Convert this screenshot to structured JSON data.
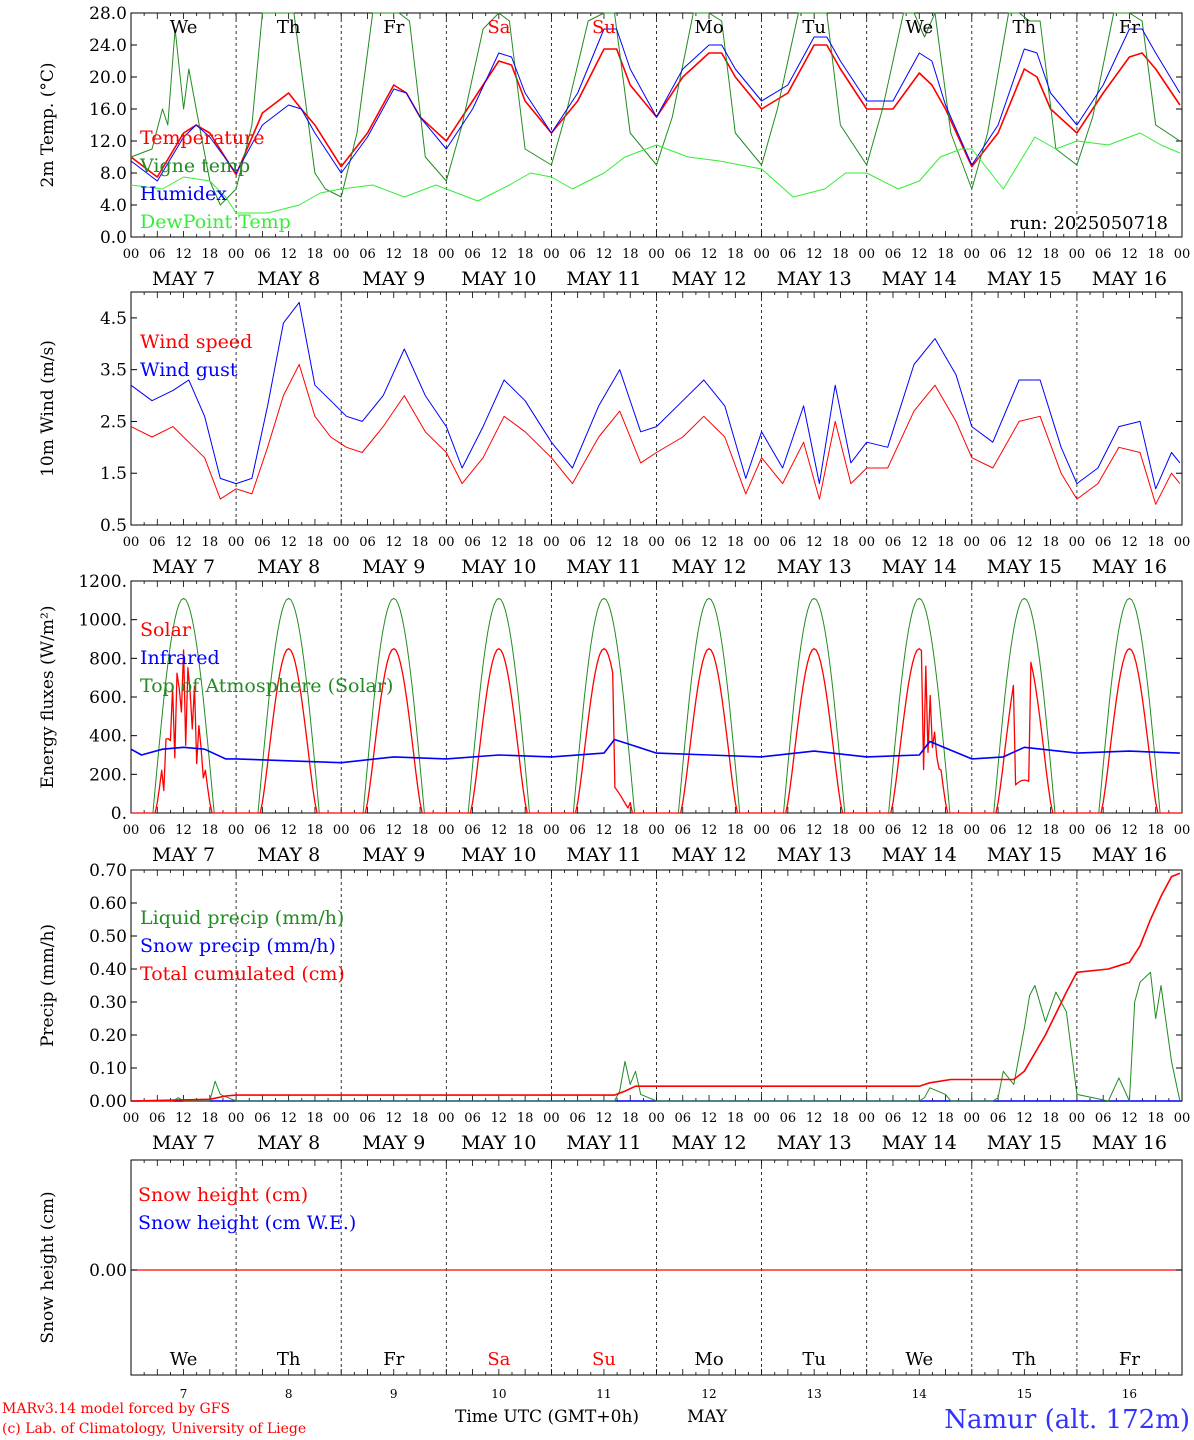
{
  "days": [
    "MAY  7",
    "MAY  8",
    "MAY  9",
    "MAY 10",
    "MAY 11",
    "MAY 12",
    "MAY 13",
    "MAY 14",
    "MAY 15",
    "MAY 16"
  ],
  "hour_ticks": [
    "00",
    "06",
    "12",
    "18"
  ],
  "hour_end": "00",
  "weekdays": [
    {
      "label": "We",
      "color": "#000000"
    },
    {
      "label": "Th",
      "color": "#000000"
    },
    {
      "label": "Fr",
      "color": "#000000"
    },
    {
      "label": "Sa",
      "color": "#ff0000"
    },
    {
      "label": "Su",
      "color": "#ff0000"
    },
    {
      "label": "Mo",
      "color": "#000000"
    },
    {
      "label": "Tu",
      "color": "#000000"
    },
    {
      "label": "We",
      "color": "#000000"
    },
    {
      "label": "Th",
      "color": "#000000"
    },
    {
      "label": "Fr",
      "color": "#000000"
    }
  ],
  "day_numbers": [
    "7",
    "8",
    "9",
    "10",
    "11",
    "12",
    "13",
    "14",
    "15",
    "16"
  ],
  "run_label": "run: 2025050718",
  "footer": {
    "model": "MARv3.14 model forced by GFS",
    "lab": "(c) Lab. of Climatology, University of Liege",
    "xlabel": "Time UTC (GMT+0h)",
    "month": "MAY",
    "station": "Namur (alt. 172m)"
  },
  "chart_data": [
    {
      "type": "line",
      "ylabel": "2m Temp. (°C)",
      "ylim": [
        0,
        28
      ],
      "yticks": [
        "0.0",
        "4.0",
        "8.0",
        "12.0",
        "16.0",
        "20.0",
        "24.0",
        "28.0"
      ],
      "x_unit": "days since 2025-05-07 00 UTC",
      "series": [
        {
          "name": "Temperature",
          "color": "#ff0000",
          "x": [
            0,
            0.25,
            0.5,
            0.62,
            0.75,
            1,
            1.25,
            1.5,
            1.62,
            1.75,
            2,
            2.25,
            2.5,
            2.62,
            2.75,
            3,
            3.25,
            3.5,
            3.62,
            3.75,
            4,
            4.25,
            4.5,
            4.62,
            4.75,
            5,
            5.25,
            5.5,
            5.62,
            5.75,
            6,
            6.25,
            6.5,
            6.62,
            6.75,
            7,
            7.25,
            7.5,
            7.62,
            7.75,
            8,
            8.25,
            8.5,
            8.62,
            8.75,
            9,
            9.25,
            9.5,
            9.62,
            9.75,
            9.98
          ],
          "values": [
            10,
            7.5,
            13,
            14,
            13,
            7.8,
            15.5,
            18,
            16,
            14,
            8.8,
            13,
            19,
            18,
            15,
            12,
            17,
            22,
            21.5,
            17,
            13,
            17,
            23.5,
            23.5,
            19,
            15,
            20,
            23,
            23,
            20,
            16,
            18,
            24,
            24,
            21,
            16,
            16,
            20.5,
            19,
            16,
            8.8,
            13,
            21,
            20,
            16,
            13,
            18,
            22.5,
            23,
            21,
            16.5
          ]
        },
        {
          "name": "Vigne temp",
          "color": "#228b22",
          "x": [
            0,
            0.2,
            0.3,
            0.35,
            0.42,
            0.5,
            0.55,
            0.62,
            0.75,
            0.85,
            1,
            1.15,
            1.25,
            1.35,
            1.45,
            1.55,
            1.75,
            1.85,
            2,
            2.15,
            2.3,
            2.45,
            2.55,
            2.65,
            2.8,
            3,
            3.15,
            3.35,
            3.5,
            3.6,
            3.75,
            4,
            4.15,
            4.35,
            4.5,
            4.6,
            4.75,
            5,
            5.15,
            5.35,
            5.5,
            5.62,
            5.75,
            6,
            6.15,
            6.35,
            6.5,
            6.62,
            6.75,
            7,
            7.15,
            7.35,
            7.45,
            7.55,
            7.65,
            7.8,
            8,
            8.15,
            8.35,
            8.45,
            8.55,
            8.65,
            8.8,
            9,
            9.15,
            9.35,
            9.5,
            9.62,
            9.75,
            9.98
          ],
          "values": [
            10,
            11,
            16,
            14,
            26,
            16,
            21,
            16,
            7,
            4,
            6,
            14,
            28,
            28,
            28,
            28,
            8,
            6,
            5,
            13,
            28,
            28,
            28,
            27,
            10,
            7,
            14,
            26,
            28,
            27,
            11,
            9,
            16,
            27,
            28,
            28,
            13,
            9,
            15,
            28,
            28,
            27,
            13,
            9,
            16,
            28,
            28,
            28,
            14,
            9,
            16,
            28,
            28,
            25,
            28,
            13,
            6,
            13,
            28,
            28,
            27,
            27,
            11,
            9,
            15,
            28,
            28,
            27,
            14,
            12
          ]
        },
        {
          "name": "Humidex",
          "color": "#0000ff",
          "x": [
            0,
            0.25,
            0.5,
            0.62,
            0.75,
            1,
            1.25,
            1.5,
            1.62,
            1.75,
            2,
            2.25,
            2.5,
            2.62,
            2.75,
            3,
            3.25,
            3.5,
            3.62,
            3.75,
            4,
            4.25,
            4.5,
            4.62,
            4.75,
            5,
            5.25,
            5.5,
            5.62,
            5.75,
            6,
            6.25,
            6.5,
            6.62,
            6.75,
            7,
            7.25,
            7.5,
            7.62,
            7.75,
            8,
            8.25,
            8.5,
            8.62,
            8.75,
            9,
            9.25,
            9.5,
            9.62,
            9.75,
            9.98
          ],
          "values": [
            9.5,
            7,
            12.5,
            14,
            12.5,
            8,
            14,
            16.5,
            16,
            13,
            8,
            12.5,
            18.5,
            18,
            15,
            11,
            16,
            23,
            22.5,
            18,
            13,
            18,
            26,
            26,
            21,
            15,
            21,
            24,
            24,
            21,
            17,
            19,
            25,
            25,
            22,
            17,
            17,
            23,
            22,
            16.5,
            9,
            14,
            23.5,
            23,
            18,
            14,
            19,
            26,
            26,
            23,
            18
          ]
        },
        {
          "name": "DewPoint Temp",
          "color": "#33ee33",
          "x": [
            0,
            0.3,
            0.5,
            0.75,
            0.9,
            1,
            1.3,
            1.6,
            1.8,
            2,
            2.3,
            2.6,
            2.9,
            3,
            3.3,
            3.6,
            3.8,
            4,
            4.2,
            4.5,
            4.7,
            5,
            5.3,
            5.6,
            5.8,
            6,
            6.3,
            6.6,
            6.8,
            7,
            7.3,
            7.5,
            7.7,
            7.9,
            8,
            8.3,
            8.6,
            8.8,
            9,
            9.3,
            9.6,
            9.8,
            9.98
          ],
          "values": [
            6.5,
            6,
            7.5,
            7,
            5,
            3,
            3,
            4,
            5.5,
            6,
            6.5,
            5,
            6.5,
            6,
            4.5,
            6.5,
            8,
            7.5,
            6,
            8,
            10,
            11.5,
            10,
            9.5,
            9,
            8.5,
            5,
            6,
            8,
            8,
            6,
            7,
            10,
            11,
            11,
            6,
            12.5,
            11,
            12,
            11.5,
            13,
            11.5,
            10.5
          ]
        }
      ]
    },
    {
      "type": "line",
      "ylabel": "10m Wind (m/s)",
      "ylim": [
        0.5,
        5.0
      ],
      "yticks": [
        "0.5",
        "1.5",
        "2.5",
        "3.5",
        "4.5"
      ],
      "series": [
        {
          "name": "Wind speed",
          "color": "#ff0000",
          "x": [
            0,
            0.2,
            0.4,
            0.55,
            0.7,
            0.85,
            1,
            1.15,
            1.3,
            1.45,
            1.6,
            1.75,
            1.9,
            2.05,
            2.2,
            2.4,
            2.6,
            2.8,
            3,
            3.15,
            3.35,
            3.55,
            3.75,
            4,
            4.2,
            4.45,
            4.65,
            4.85,
            5,
            5.25,
            5.45,
            5.65,
            5.85,
            6,
            6.2,
            6.4,
            6.55,
            6.7,
            6.85,
            7,
            7.2,
            7.45,
            7.65,
            7.85,
            8,
            8.2,
            8.45,
            8.65,
            8.85,
            9,
            9.2,
            9.4,
            9.6,
            9.75,
            9.9,
            9.98
          ],
          "values": [
            2.4,
            2.2,
            2.4,
            2.1,
            1.8,
            1.0,
            1.2,
            1.1,
            2.0,
            3.0,
            3.6,
            2.6,
            2.2,
            2.0,
            1.9,
            2.4,
            3.0,
            2.3,
            1.9,
            1.3,
            1.8,
            2.6,
            2.3,
            1.8,
            1.3,
            2.2,
            2.7,
            1.7,
            1.9,
            2.2,
            2.6,
            2.2,
            1.1,
            1.8,
            1.3,
            2.1,
            1.0,
            2.5,
            1.3,
            1.6,
            1.6,
            2.7,
            3.2,
            2.5,
            1.8,
            1.6,
            2.5,
            2.6,
            1.5,
            1.0,
            1.3,
            2.0,
            1.9,
            0.9,
            1.5,
            1.3
          ]
        },
        {
          "name": "Wind gust",
          "color": "#0000ff",
          "x": [
            0,
            0.2,
            0.4,
            0.55,
            0.7,
            0.85,
            1,
            1.15,
            1.3,
            1.45,
            1.6,
            1.75,
            1.9,
            2.05,
            2.2,
            2.4,
            2.6,
            2.8,
            3,
            3.15,
            3.35,
            3.55,
            3.75,
            4,
            4.2,
            4.45,
            4.65,
            4.85,
            5,
            5.25,
            5.45,
            5.65,
            5.85,
            6,
            6.2,
            6.4,
            6.55,
            6.7,
            6.85,
            7,
            7.2,
            7.45,
            7.65,
            7.85,
            8,
            8.2,
            8.45,
            8.65,
            8.85,
            9,
            9.2,
            9.4,
            9.6,
            9.75,
            9.9,
            9.98
          ],
          "values": [
            3.2,
            2.9,
            3.1,
            3.3,
            2.6,
            1.4,
            1.3,
            1.4,
            2.8,
            4.4,
            4.8,
            3.2,
            2.9,
            2.6,
            2.5,
            3.0,
            3.9,
            3.0,
            2.4,
            1.6,
            2.4,
            3.3,
            2.9,
            2.1,
            1.6,
            2.8,
            3.5,
            2.3,
            2.4,
            2.9,
            3.3,
            2.8,
            1.4,
            2.3,
            1.6,
            2.8,
            1.3,
            3.2,
            1.7,
            2.1,
            2.0,
            3.6,
            4.1,
            3.4,
            2.4,
            2.1,
            3.3,
            3.3,
            2.0,
            1.3,
            1.6,
            2.4,
            2.5,
            1.2,
            1.9,
            1.7
          ]
        }
      ]
    },
    {
      "type": "line",
      "ylabel": "Energy fluxes (W/m²)",
      "ylim": [
        0,
        1200
      ],
      "yticks": [
        "0.",
        "200.",
        "400.",
        "600.",
        "800.",
        "1000.",
        "1200."
      ],
      "series": [
        {
          "name": "Solar",
          "color": "#ff0000",
          "note": "daily bell, peak ~850"
        },
        {
          "name": "Infrared",
          "color": "#0000ff",
          "x": [
            0,
            0.1,
            0.3,
            0.5,
            0.7,
            0.9,
            1,
            1.5,
            2,
            2.5,
            3,
            3.5,
            4,
            4.5,
            4.6,
            5,
            5.5,
            6,
            6.5,
            7,
            7.5,
            7.6,
            8,
            8.3,
            8.5,
            9,
            9.5,
            9.98
          ],
          "values": [
            330,
            300,
            330,
            340,
            330,
            280,
            280,
            270,
            260,
            290,
            280,
            300,
            290,
            310,
            380,
            310,
            300,
            290,
            320,
            290,
            300,
            370,
            280,
            290,
            340,
            310,
            320,
            310
          ]
        },
        {
          "name": "Top of Atmosphere (Solar)",
          "color": "#228b22",
          "note": "daily bell, peak ~1110"
        }
      ]
    },
    {
      "type": "line",
      "ylabel": "Precip (mm/h)",
      "ylim": [
        0,
        0.7
      ],
      "yticks": [
        "0.00",
        "0.10",
        "0.20",
        "0.30",
        "0.40",
        "0.50",
        "0.60",
        "0.70"
      ],
      "series": [
        {
          "name": "Liquid precip (mm/h)",
          "color": "#228b22",
          "x": [
            0,
            0.4,
            0.45,
            0.5,
            0.75,
            0.8,
            0.85,
            1,
            4.6,
            4.65,
            4.7,
            4.75,
            4.8,
            4.85,
            5,
            7.5,
            7.55,
            7.6,
            7.75,
            7.8,
            8,
            8.2,
            8.25,
            8.3,
            8.4,
            8.5,
            8.55,
            8.6,
            8.7,
            8.8,
            8.9,
            9,
            9.3,
            9.4,
            9.5,
            9.55,
            9.6,
            9.7,
            9.75,
            9.8,
            9.9,
            9.98
          ],
          "values": [
            0,
            0,
            0.01,
            0,
            0,
            0.06,
            0.02,
            0,
            0,
            0.03,
            0.12,
            0.05,
            0.09,
            0.02,
            0,
            0,
            0.01,
            0.04,
            0.02,
            0,
            0,
            0,
            0.01,
            0.09,
            0.05,
            0.22,
            0.32,
            0.35,
            0.24,
            0.33,
            0.27,
            0.02,
            0,
            0.07,
            0,
            0.3,
            0.36,
            0.39,
            0.25,
            0.35,
            0.12,
            0
          ]
        },
        {
          "name": "Snow precip (mm/h)",
          "color": "#0000ff",
          "values": "all zero"
        },
        {
          "name": "Total cumulated (cm)",
          "color": "#ff0000",
          "x": [
            0,
            0.75,
            0.9,
            1,
            4.6,
            4.7,
            4.8,
            5,
            7.5,
            7.6,
            7.8,
            8,
            8.4,
            8.5,
            8.7,
            8.9,
            9,
            9.3,
            9.4,
            9.5,
            9.6,
            9.7,
            9.8,
            9.9,
            9.98
          ],
          "values": [
            0,
            0.005,
            0.015,
            0.018,
            0.018,
            0.03,
            0.045,
            0.045,
            0.045,
            0.055,
            0.065,
            0.065,
            0.065,
            0.09,
            0.2,
            0.33,
            0.39,
            0.4,
            0.41,
            0.42,
            0.47,
            0.55,
            0.62,
            0.68,
            0.69
          ]
        }
      ]
    },
    {
      "type": "line",
      "ylabel": "Snow height (cm)",
      "yticks": [
        "0.00"
      ],
      "series": [
        {
          "name": "Snow height (cm)",
          "color": "#ff0000",
          "values": "constant 0.00"
        },
        {
          "name": "Snow height (cm W.E.)",
          "color": "#0000ff",
          "values": "constant 0.00"
        }
      ]
    }
  ]
}
